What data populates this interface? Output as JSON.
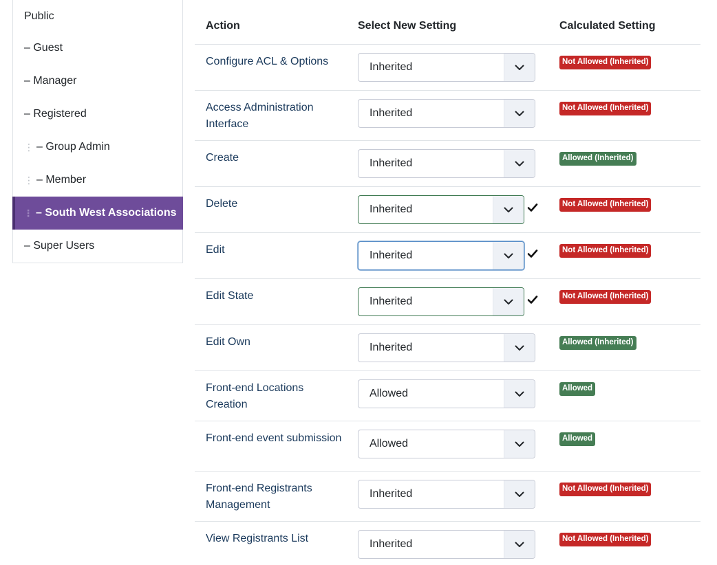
{
  "groups": {
    "items": [
      {
        "label": "Public",
        "depth": 0,
        "active": false
      },
      {
        "label": "– Guest",
        "depth": 1,
        "active": false
      },
      {
        "label": "– Manager",
        "depth": 1,
        "active": false
      },
      {
        "label": "– Registered",
        "depth": 1,
        "active": false
      },
      {
        "label": "– Group Admin",
        "depth": 2,
        "active": false
      },
      {
        "label": "– Member",
        "depth": 2,
        "active": false
      },
      {
        "label": "– South West Associations",
        "depth": 2,
        "active": true
      },
      {
        "label": "– Super Users",
        "depth": 1,
        "active": false
      }
    ]
  },
  "permissions": {
    "headers": {
      "action": "Action",
      "select": "Select New Setting",
      "calculated": "Calculated Setting"
    },
    "rows": [
      {
        "action": "Configure ACL & Options",
        "setting": "Inherited",
        "calculated": "Not Allowed (Inherited)",
        "status": "deny",
        "changed": false,
        "focused": false
      },
      {
        "action": "Access Administration Interface",
        "setting": "Inherited",
        "calculated": "Not Allowed (Inherited)",
        "status": "deny",
        "changed": false,
        "focused": false
      },
      {
        "action": "Create",
        "setting": "Inherited",
        "calculated": "Allowed (Inherited)",
        "status": "allow",
        "changed": false,
        "focused": false
      },
      {
        "action": "Delete",
        "setting": "Inherited",
        "calculated": "Not Allowed (Inherited)",
        "status": "deny",
        "changed": true,
        "focused": false
      },
      {
        "action": "Edit",
        "setting": "Inherited",
        "calculated": "Not Allowed (Inherited)",
        "status": "deny",
        "changed": true,
        "focused": true
      },
      {
        "action": "Edit State",
        "setting": "Inherited",
        "calculated": "Not Allowed (Inherited)",
        "status": "deny",
        "changed": true,
        "focused": false
      },
      {
        "action": "Edit Own",
        "setting": "Inherited",
        "calculated": "Allowed (Inherited)",
        "status": "allow",
        "changed": false,
        "focused": false
      },
      {
        "action": "Front-end Locations Creation",
        "setting": "Allowed",
        "calculated": "Allowed",
        "status": "allow",
        "changed": false,
        "focused": false
      },
      {
        "action": "Front-end event submission",
        "setting": "Allowed",
        "calculated": "Allowed",
        "status": "allow",
        "changed": false,
        "focused": false
      },
      {
        "action": "Front-end Registrants Management",
        "setting": "Inherited",
        "calculated": "Not Allowed (Inherited)",
        "status": "deny",
        "changed": false,
        "focused": false
      },
      {
        "action": "View Registrants List",
        "setting": "Inherited",
        "calculated": "Not Allowed (Inherited)",
        "status": "deny",
        "changed": false,
        "focused": false
      }
    ]
  },
  "colors": {
    "active_group": "#6e4c9a",
    "deny": "#c52827",
    "allow": "#457d54",
    "changed_border": "#3f7a52"
  },
  "icons": {
    "select_arrow": "chevron-down-icon",
    "saved": "checkmark-icon",
    "drag": "drag-handle-icon"
  }
}
